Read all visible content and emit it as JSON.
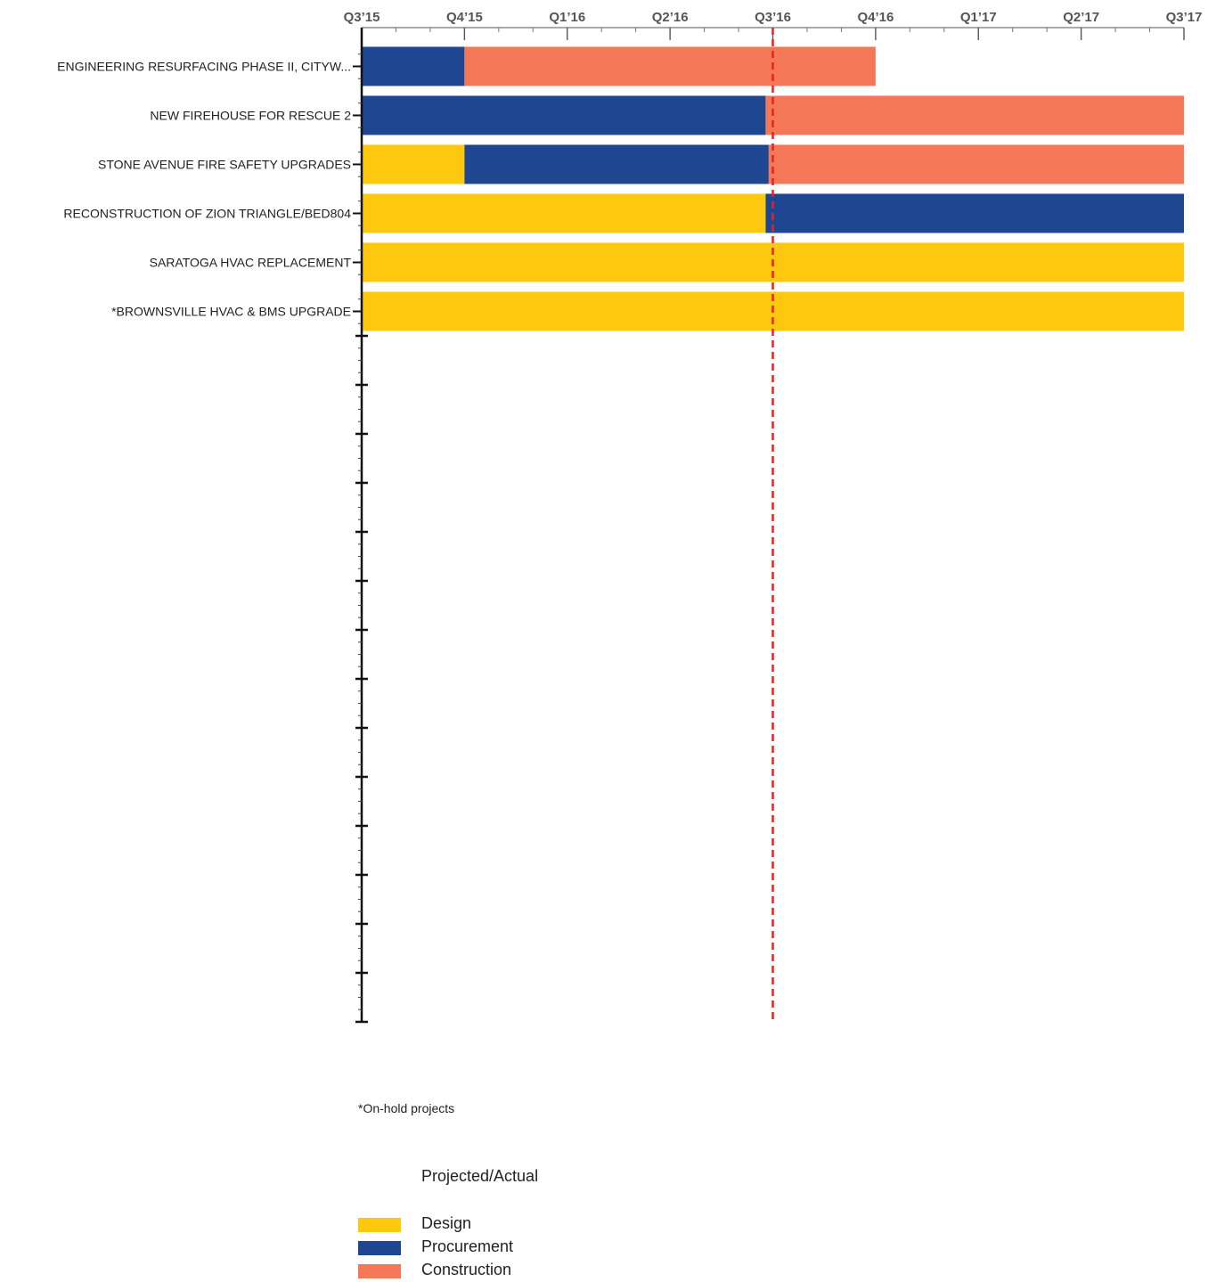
{
  "chart_data": {
    "type": "gantt",
    "x_ticks": [
      "Q3’15",
      "Q4’15",
      "Q1’16",
      "Q2’16",
      "Q3’16",
      "Q4’16",
      "Q1’17",
      "Q2’17",
      "Q3’17"
    ],
    "current_marker": "Q3’16",
    "current_marker_color": "#e8231f",
    "colors": {
      "Design": "#fec80f",
      "Procurement": "#1f4791",
      "Construction": "#f47757"
    },
    "tasks": [
      {
        "label": "ENGINEERING RESURFACING PHASE II, CITYW...",
        "segments": [
          {
            "phase": "Procurement",
            "start": 0,
            "end": 1
          },
          {
            "phase": "Construction",
            "start": 1,
            "end": 5
          }
        ]
      },
      {
        "label": "NEW FIREHOUSE FOR RESCUE 2",
        "segments": [
          {
            "phase": "Procurement",
            "start": 0,
            "end": 3.93
          },
          {
            "phase": "Construction",
            "start": 3.93,
            "end": 8
          }
        ]
      },
      {
        "label": "STONE AVENUE FIRE SAFETY UPGRADES",
        "segments": [
          {
            "phase": "Design",
            "start": 0,
            "end": 1
          },
          {
            "phase": "Procurement",
            "start": 1,
            "end": 3.96
          },
          {
            "phase": "Construction",
            "start": 3.96,
            "end": 8
          }
        ]
      },
      {
        "label": "RECONSTRUCTION OF ZION TRIANGLE/BED804",
        "segments": [
          {
            "phase": "Design",
            "start": 0,
            "end": 3.93
          },
          {
            "phase": "Procurement",
            "start": 3.93,
            "end": 8
          }
        ]
      },
      {
        "label": "SARATOGA HVAC REPLACEMENT",
        "segments": [
          {
            "phase": "Design",
            "start": 0,
            "end": 8
          }
        ]
      },
      {
        "label": "*BROWNSVILLE HVAC & BMS UPGRADE",
        "segments": [
          {
            "phase": "Design",
            "start": 0,
            "end": 8
          }
        ]
      }
    ],
    "empty_rows": 14
  },
  "footnote": "*On-hold projects",
  "legend": {
    "title": "Projected/Actual",
    "items": [
      {
        "label": "Design",
        "color": "#fec80f"
      },
      {
        "label": "Procurement",
        "color": "#1f4791"
      },
      {
        "label": "Construction",
        "color": "#f47757"
      }
    ]
  }
}
